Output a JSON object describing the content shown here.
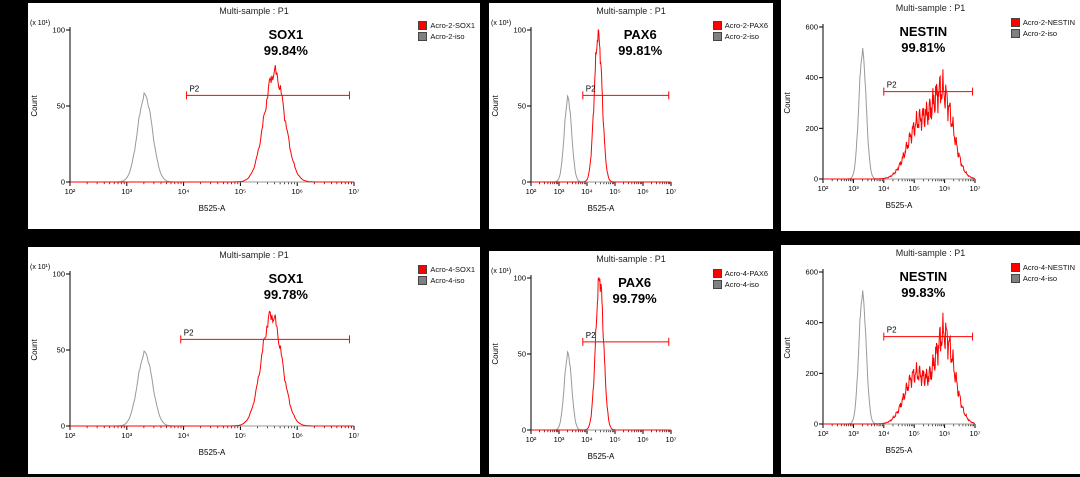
{
  "background": "#000000",
  "panel_bg": "#ffffff",
  "chart_data": [
    {
      "type": "histogram",
      "title": "Multi-sample : P1",
      "marker": "SOX1",
      "percent": "99.84%",
      "xlabel": "B525-A",
      "ylabel": "Count",
      "y_scale_note": "(x 10¹)",
      "x_scale": "log",
      "x_log_range": [
        2,
        7
      ],
      "xticks": [
        "10²",
        "10³",
        "10⁴",
        "10⁵",
        "10⁶",
        "10⁷"
      ],
      "ylim": [
        0,
        100
      ],
      "yticks": [
        0,
        50,
        100
      ],
      "legend": [
        {
          "label": "Acro-2-SOX1",
          "color": "#ff0000"
        },
        {
          "label": "Acro-2-iso",
          "color": "#808080"
        }
      ],
      "series": [
        {
          "name": "Acro-2-iso",
          "color": "#9a9a9a",
          "noise": 0.02,
          "components": [
            {
              "mu": 3.32,
              "sigma": 0.13,
              "amp": 57
            }
          ]
        },
        {
          "name": "Acro-2-SOX1",
          "color": "#ff0000",
          "noise": 0.04,
          "components": [
            {
              "mu": 5.6,
              "sigma": 0.18,
              "amp": 72
            }
          ]
        }
      ],
      "gate": {
        "label": "P2",
        "log_from": 4.05,
        "log_to": 6.92,
        "y": 57
      },
      "label_x": 0.76
    },
    {
      "type": "histogram",
      "title": "Multi-sample : P1",
      "marker": "PAX6",
      "percent": "99.81%",
      "xlabel": "B525-A",
      "ylabel": "Count",
      "y_scale_note": "(x 10¹)",
      "x_scale": "log",
      "x_log_range": [
        2,
        7
      ],
      "xticks": [
        "10²",
        "10³",
        "10⁴",
        "10⁵",
        "10⁶",
        "10⁷"
      ],
      "ylim": [
        0,
        100
      ],
      "yticks": [
        0,
        50,
        100
      ],
      "legend": [
        {
          "label": "Acro-2-PAX6",
          "color": "#ff0000"
        },
        {
          "label": "Acro-2-iso",
          "color": "#808080"
        }
      ],
      "series": [
        {
          "name": "Acro-2-iso",
          "color": "#9a9a9a",
          "noise": 0.02,
          "components": [
            {
              "mu": 3.32,
              "sigma": 0.13,
              "amp": 55
            }
          ]
        },
        {
          "name": "Acro-2-PAX6",
          "color": "#ff0000",
          "noise": 0.04,
          "components": [
            {
              "mu": 4.4,
              "sigma": 0.14,
              "amp": 97
            }
          ]
        }
      ],
      "gate": {
        "label": "P2",
        "log_from": 3.85,
        "log_to": 6.92,
        "y": 57
      },
      "label_x": 0.78
    },
    {
      "type": "histogram",
      "title": "Multi-sample : P1",
      "marker": "NESTIN",
      "percent": "99.81%",
      "xlabel": "B525-A",
      "ylabel": "Count",
      "y_scale_note": null,
      "x_scale": "log",
      "x_log_range": [
        2,
        7
      ],
      "xticks": [
        "10²",
        "10³",
        "10⁴",
        "10⁵",
        "10⁶",
        "10⁷"
      ],
      "ylim": [
        0,
        600
      ],
      "yticks": [
        0,
        200,
        400,
        600
      ],
      "legend": [
        {
          "label": "Acro-2-NESTIN",
          "color": "#ff0000"
        },
        {
          "label": "Acro-2-iso",
          "color": "#808080"
        }
      ],
      "series": [
        {
          "name": "Acro-2-iso",
          "color": "#9a9a9a",
          "noise": 0.02,
          "components": [
            {
              "mu": 3.3,
              "sigma": 0.12,
              "amp": 500
            }
          ]
        },
        {
          "name": "Acro-2-NESTIN",
          "color": "#ff0000",
          "noise": 0.12,
          "components": [
            {
              "mu": 5.15,
              "sigma": 0.38,
              "amp": 215
            },
            {
              "mu": 5.95,
              "sigma": 0.33,
              "amp": 325
            }
          ]
        }
      ],
      "gate": {
        "label": "P2",
        "log_from": 4.0,
        "log_to": 6.92,
        "y": 345
      },
      "label_x": 0.66
    },
    {
      "type": "histogram",
      "title": "Multi-sample : P1",
      "marker": "SOX1",
      "percent": "99.78%",
      "xlabel": "B525-A",
      "ylabel": "Count",
      "y_scale_note": "(x 10¹)",
      "x_scale": "log",
      "x_log_range": [
        2,
        7
      ],
      "xticks": [
        "10²",
        "10³",
        "10⁴",
        "10⁵",
        "10⁶",
        "10⁷"
      ],
      "ylim": [
        0,
        100
      ],
      "yticks": [
        0,
        50,
        100
      ],
      "legend": [
        {
          "label": "Acro-4-SOX1",
          "color": "#ff0000"
        },
        {
          "label": "Acro-4-iso",
          "color": "#808080"
        }
      ],
      "series": [
        {
          "name": "Acro-4-iso",
          "color": "#9a9a9a",
          "noise": 0.02,
          "components": [
            {
              "mu": 3.32,
              "sigma": 0.13,
              "amp": 48
            }
          ]
        },
        {
          "name": "Acro-4-SOX1",
          "color": "#ff0000",
          "noise": 0.04,
          "components": [
            {
              "mu": 5.55,
              "sigma": 0.18,
              "amp": 73
            }
          ]
        }
      ],
      "gate": {
        "label": "P2",
        "log_from": 3.95,
        "log_to": 6.92,
        "y": 57
      },
      "label_x": 0.76
    },
    {
      "type": "histogram",
      "title": "Multi-sample : P1",
      "marker": "PAX6",
      "percent": "99.79%",
      "xlabel": "B525-A",
      "ylabel": "Count",
      "y_scale_note": "(x 10¹)",
      "x_scale": "log",
      "x_log_range": [
        2,
        7
      ],
      "xticks": [
        "10²",
        "10³",
        "10⁴",
        "10⁵",
        "10⁶",
        "10⁷"
      ],
      "ylim": [
        0,
        100
      ],
      "yticks": [
        0,
        50,
        100
      ],
      "legend": [
        {
          "label": "Acro-4-PAX6",
          "color": "#ff0000"
        },
        {
          "label": "Acro-4-iso",
          "color": "#808080"
        }
      ],
      "series": [
        {
          "name": "Acro-4-iso",
          "color": "#9a9a9a",
          "noise": 0.02,
          "components": [
            {
              "mu": 3.32,
              "sigma": 0.13,
              "amp": 50
            }
          ]
        },
        {
          "name": "Acro-4-PAX6",
          "color": "#ff0000",
          "noise": 0.04,
          "components": [
            {
              "mu": 4.45,
              "sigma": 0.14,
              "amp": 100
            }
          ]
        }
      ],
      "gate": {
        "label": "P2",
        "log_from": 3.85,
        "log_to": 6.92,
        "y": 58
      },
      "label_x": 0.74
    },
    {
      "type": "histogram",
      "title": "Multi-sample : P1",
      "marker": "NESTIN",
      "percent": "99.83%",
      "xlabel": "B525-A",
      "ylabel": "Count",
      "y_scale_note": null,
      "x_scale": "log",
      "x_log_range": [
        2,
        7
      ],
      "xticks": [
        "10²",
        "10³",
        "10⁴",
        "10⁵",
        "10⁶",
        "10⁷"
      ],
      "ylim": [
        0,
        600
      ],
      "yticks": [
        0,
        200,
        400,
        600
      ],
      "legend": [
        {
          "label": "Acro-4-NESTIN",
          "color": "#ff0000"
        },
        {
          "label": "Acro-4-iso",
          "color": "#808080"
        }
      ],
      "series": [
        {
          "name": "Acro-4-iso",
          "color": "#9a9a9a",
          "noise": 0.02,
          "components": [
            {
              "mu": 3.3,
              "sigma": 0.12,
              "amp": 510
            }
          ]
        },
        {
          "name": "Acro-4-NESTIN",
          "color": "#ff0000",
          "noise": 0.12,
          "components": [
            {
              "mu": 5.05,
              "sigma": 0.36,
              "amp": 195
            },
            {
              "mu": 6.0,
              "sigma": 0.32,
              "amp": 350
            }
          ]
        }
      ],
      "gate": {
        "label": "P2",
        "log_from": 4.0,
        "log_to": 6.92,
        "y": 345
      },
      "label_x": 0.66
    }
  ]
}
